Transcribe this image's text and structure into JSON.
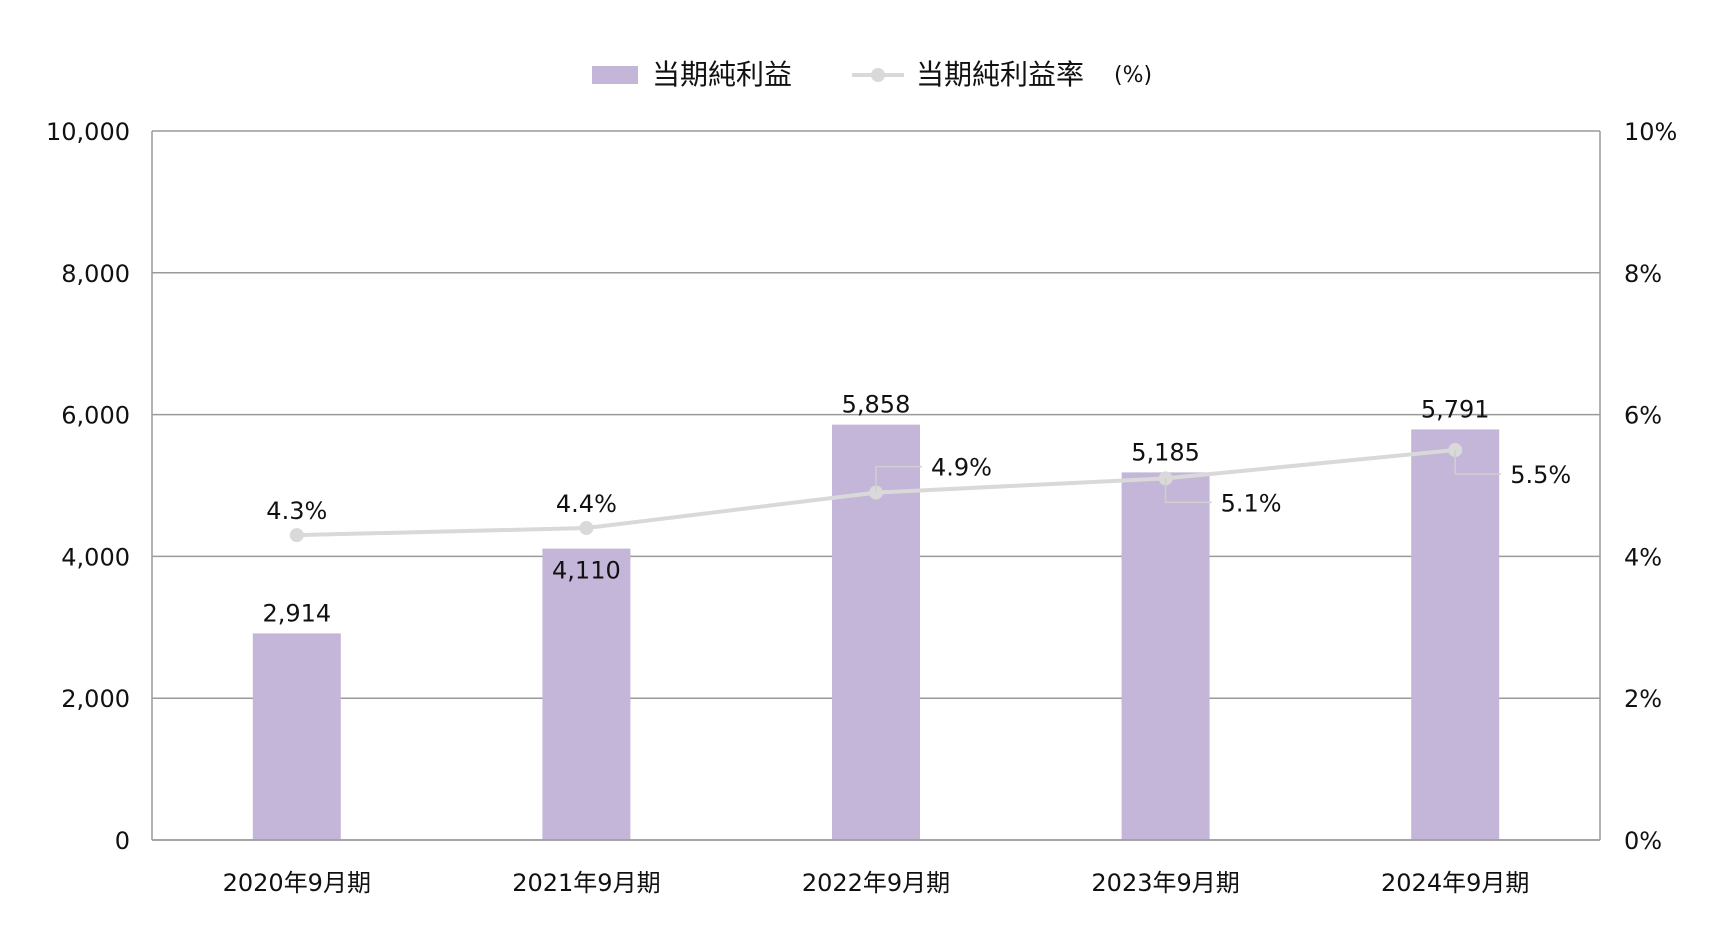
{
  "chart_data": {
    "type": "bar",
    "categories": [
      "2020年9月期",
      "2021年9月期",
      "2022年9月期",
      "2023年9月期",
      "2024年9月期"
    ],
    "series": [
      {
        "name": "当期純利益",
        "kind": "bar",
        "axis": "left",
        "values": [
          2914,
          4110,
          5858,
          5185,
          5791
        ],
        "labels": [
          "2,914",
          "4,110",
          "5,858",
          "5,185",
          "5,791"
        ]
      },
      {
        "name": "当期純利益率",
        "kind": "line",
        "axis": "right",
        "values": [
          4.3,
          4.4,
          4.9,
          5.1,
          5.5
        ],
        "labels": [
          "4.3%",
          "4.4%",
          "4.9%",
          "5.1%",
          "5.5%"
        ]
      }
    ],
    "legend": {
      "bar_label": "当期純利益",
      "line_label": "当期純利益率",
      "line_unit": "(%)"
    },
    "y_left": {
      "lim": [
        0,
        10000
      ],
      "ticks": [
        0,
        2000,
        4000,
        6000,
        8000,
        10000
      ],
      "tick_labels": [
        "0",
        "2,000",
        "4,000",
        "6,000",
        "8,000",
        "10,000"
      ]
    },
    "y_right": {
      "lim": [
        0,
        10
      ],
      "ticks": [
        0,
        2,
        4,
        6,
        8,
        10
      ],
      "tick_labels": [
        "0%",
        "2%",
        "4%",
        "6%",
        "8%",
        "10%"
      ]
    },
    "grid": true,
    "legend_position": "top-center",
    "colors": {
      "bar": "#c4b6d8",
      "line": "#d9d9d9",
      "grid": "#9a9a9a",
      "leader": "#cfcfcf"
    }
  }
}
